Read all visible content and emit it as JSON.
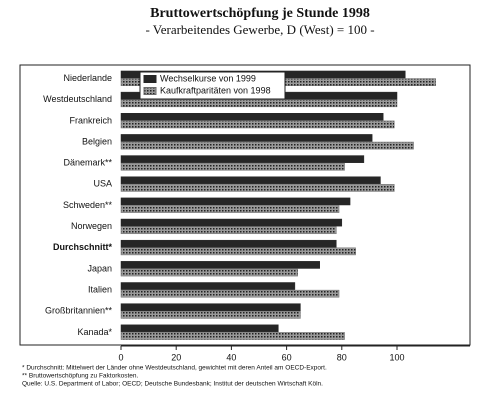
{
  "chart_data": {
    "type": "hbar",
    "title": "Bruttowertschöpfung je Stunde 1998",
    "subtitle": "- Verarbeitendes Gewerbe, D (West) = 100 -",
    "categories": [
      "Niederlande",
      "Westdeutschland",
      "Frankreich",
      "Belgien",
      "Dänemark**",
      "USA",
      "Schweden**",
      "Norwegen",
      "Durchschnitt*",
      "Japan",
      "Italien",
      "Großbritannien**",
      "Kanada*"
    ],
    "bold_category_index": 8,
    "series": [
      {
        "name": "Wechselkurse von 1999",
        "color": "#262626",
        "values": [
          103,
          100,
          95,
          91,
          88,
          94,
          83,
          80,
          78,
          72,
          63,
          65,
          57
        ]
      },
      {
        "name": "Kaufkraftparitäten von 1998",
        "color": "#6e6e6e",
        "values": [
          114,
          100,
          99,
          106,
          81,
          99,
          79,
          78,
          85,
          64,
          79,
          65,
          81
        ]
      }
    ],
    "xlim": [
      0,
      125
    ],
    "xticks": [
      0,
      20,
      40,
      60,
      80,
      100
    ],
    "legend": "upper left",
    "grid": false,
    "footnotes": [
      "* Durchschnitt: Mittelwert der Länder ohne Westdeutschland, gewichtet mit deren Anteil am OECD-Export.",
      "** Bruttowertschöpfung zu Faktorkosten.",
      "Quelle: U.S. Department of Labor; OECD; Deutsche Bundesbank; Institut der deutschen Wirtschaft Köln."
    ]
  }
}
